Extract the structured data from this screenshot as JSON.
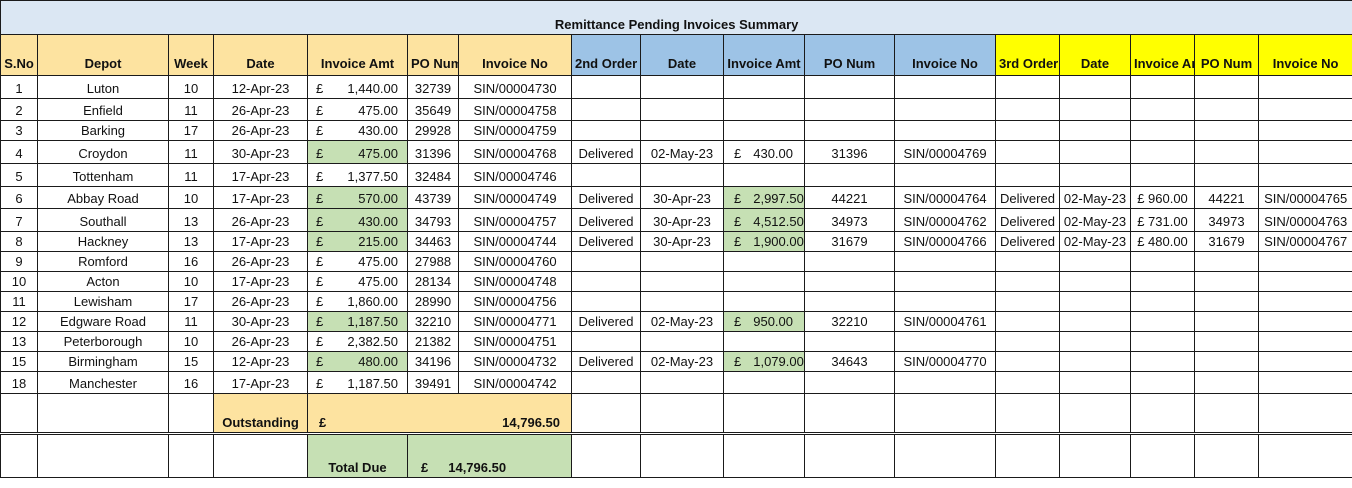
{
  "title": "Remittance Pending Invoices Summary",
  "colors": {
    "tan": "#fde3a0",
    "blue": "#9dc3e6",
    "yellow": "#ffff00",
    "green": "#c6e0b4",
    "title_bg": "#dbe7f3"
  },
  "headers": {
    "sno": "S.No",
    "depot": "Depot",
    "week": "Week",
    "date": "Date",
    "inv_amt": "Invoice Amt",
    "po_num": "PO Num",
    "inv_no": "Invoice No",
    "second_order": "2nd Order",
    "date2": "Date",
    "inv_amt2": "Invoice Amt",
    "po_num2": "PO Num",
    "inv_no2": "Invoice No",
    "third_order": "3rd Order",
    "date3": "Date",
    "inv_amt3": "Invoice Amt",
    "po_num3": "PO Num",
    "inv_no3": "Invoice No"
  },
  "currency": "£",
  "rows": [
    {
      "sno": "1",
      "depot": "Luton",
      "week": "10",
      "date": "12-Apr-23",
      "amt": "1,440.00",
      "amt_green": false,
      "po": "32739",
      "inv": "SIN/00004730"
    },
    {
      "sno": "2",
      "depot": "Enfield",
      "week": "11",
      "date": "26-Apr-23",
      "amt": "475.00",
      "amt_green": false,
      "po": "35649",
      "inv": "SIN/00004758"
    },
    {
      "sno": "3",
      "depot": "Barking",
      "week": "17",
      "date": "26-Apr-23",
      "amt": "430.00",
      "amt_green": false,
      "po": "29928",
      "inv": "SIN/00004759"
    },
    {
      "sno": "4",
      "depot": "Croydon",
      "week": "11",
      "date": "30-Apr-23",
      "amt": "475.00",
      "amt_green": true,
      "po": "31396",
      "inv": "SIN/00004768",
      "o2_status": "Delivered",
      "o2_date": "02-May-23",
      "o2_amt": "430.00",
      "o2_green": false,
      "o2_po": "31396",
      "o2_inv": "SIN/00004769"
    },
    {
      "sno": "5",
      "depot": "Tottenham",
      "week": "11",
      "date": "17-Apr-23",
      "amt": "1,377.50",
      "amt_green": false,
      "po": "32484",
      "inv": "SIN/00004746"
    },
    {
      "sno": "6",
      "depot": "Abbay Road",
      "week": "10",
      "date": "17-Apr-23",
      "amt": "570.00",
      "amt_green": true,
      "po": "43739",
      "inv": "SIN/00004749",
      "o2_status": "Delivered",
      "o2_date": "30-Apr-23",
      "o2_amt": "2,997.50",
      "o2_green": true,
      "o2_po": "44221",
      "o2_inv": "SIN/00004764",
      "o3_status": "Delivered",
      "o3_date": "02-May-23",
      "o3_amt": "£ 960.00",
      "o3_po": "44221",
      "o3_inv": "SIN/00004765"
    },
    {
      "sno": "7",
      "depot": "Southall",
      "week": "13",
      "date": "26-Apr-23",
      "amt": "430.00",
      "amt_green": true,
      "po": "34793",
      "inv": "SIN/00004757",
      "o2_status": "Delivered",
      "o2_date": "30-Apr-23",
      "o2_amt": "4,512.50",
      "o2_green": true,
      "o2_po": "34973",
      "o2_inv": "SIN/00004762",
      "o3_status": "Delivered",
      "o3_date": "02-May-23",
      "o3_amt": "£ 731.00",
      "o3_po": "34973",
      "o3_inv": "SIN/00004763"
    },
    {
      "sno": "8",
      "depot": "Hackney",
      "week": "13",
      "date": "17-Apr-23",
      "amt": "215.00",
      "amt_green": true,
      "po": "34463",
      "inv": "SIN/00004744",
      "o2_status": "Delivered",
      "o2_date": "30-Apr-23",
      "o2_amt": "1,900.00",
      "o2_green": true,
      "o2_po": "31679",
      "o2_inv": "SIN/00004766",
      "o3_status": "Delivered",
      "o3_date": "02-May-23",
      "o3_amt": "£ 480.00",
      "o3_po": "31679",
      "o3_inv": "SIN/00004767"
    },
    {
      "sno": "9",
      "depot": "Romford",
      "week": "16",
      "date": "26-Apr-23",
      "amt": "475.00",
      "amt_green": false,
      "po": "27988",
      "inv": "SIN/00004760"
    },
    {
      "sno": "10",
      "depot": "Acton",
      "week": "10",
      "date": "17-Apr-23",
      "amt": "475.00",
      "amt_green": false,
      "po": "28134",
      "inv": "SIN/00004748"
    },
    {
      "sno": "11",
      "depot": "Lewisham",
      "week": "17",
      "date": "26-Apr-23",
      "amt": "1,860.00",
      "amt_green": false,
      "po": "28990",
      "inv": "SIN/00004756"
    },
    {
      "sno": "12",
      "depot": "Edgware Road",
      "week": "11",
      "date": "30-Apr-23",
      "amt": "1,187.50",
      "amt_green": true,
      "po": "32210",
      "inv": "SIN/00004771",
      "o2_status": "Delivered",
      "o2_date": "02-May-23",
      "o2_amt": "950.00",
      "o2_green": true,
      "o2_po": "32210",
      "o2_inv": "SIN/00004761"
    },
    {
      "sno": "13",
      "depot": "Peterborough",
      "week": "10",
      "date": "26-Apr-23",
      "amt": "2,382.50",
      "amt_green": false,
      "po": "21382",
      "inv": "SIN/00004751"
    },
    {
      "sno": "15",
      "depot": "Birmingham",
      "week": "15",
      "date": "12-Apr-23",
      "amt": "480.00",
      "amt_green": true,
      "po": "34196",
      "inv": "SIN/00004732",
      "o2_status": "Delivered",
      "o2_date": "02-May-23",
      "o2_amt": "1,079.00",
      "o2_green": true,
      "o2_po": "34643",
      "o2_inv": "SIN/00004770"
    },
    {
      "sno": "18",
      "depot": "Manchester",
      "week": "16",
      "date": "17-Apr-23",
      "amt": "1,187.50",
      "amt_green": false,
      "po": "39491",
      "inv": "SIN/00004742"
    }
  ],
  "outstanding": {
    "label": "Outstanding",
    "currency": "£",
    "value": "14,796.50"
  },
  "total_due": {
    "label": "Total Due",
    "currency": "£",
    "value": "14,796.50"
  }
}
